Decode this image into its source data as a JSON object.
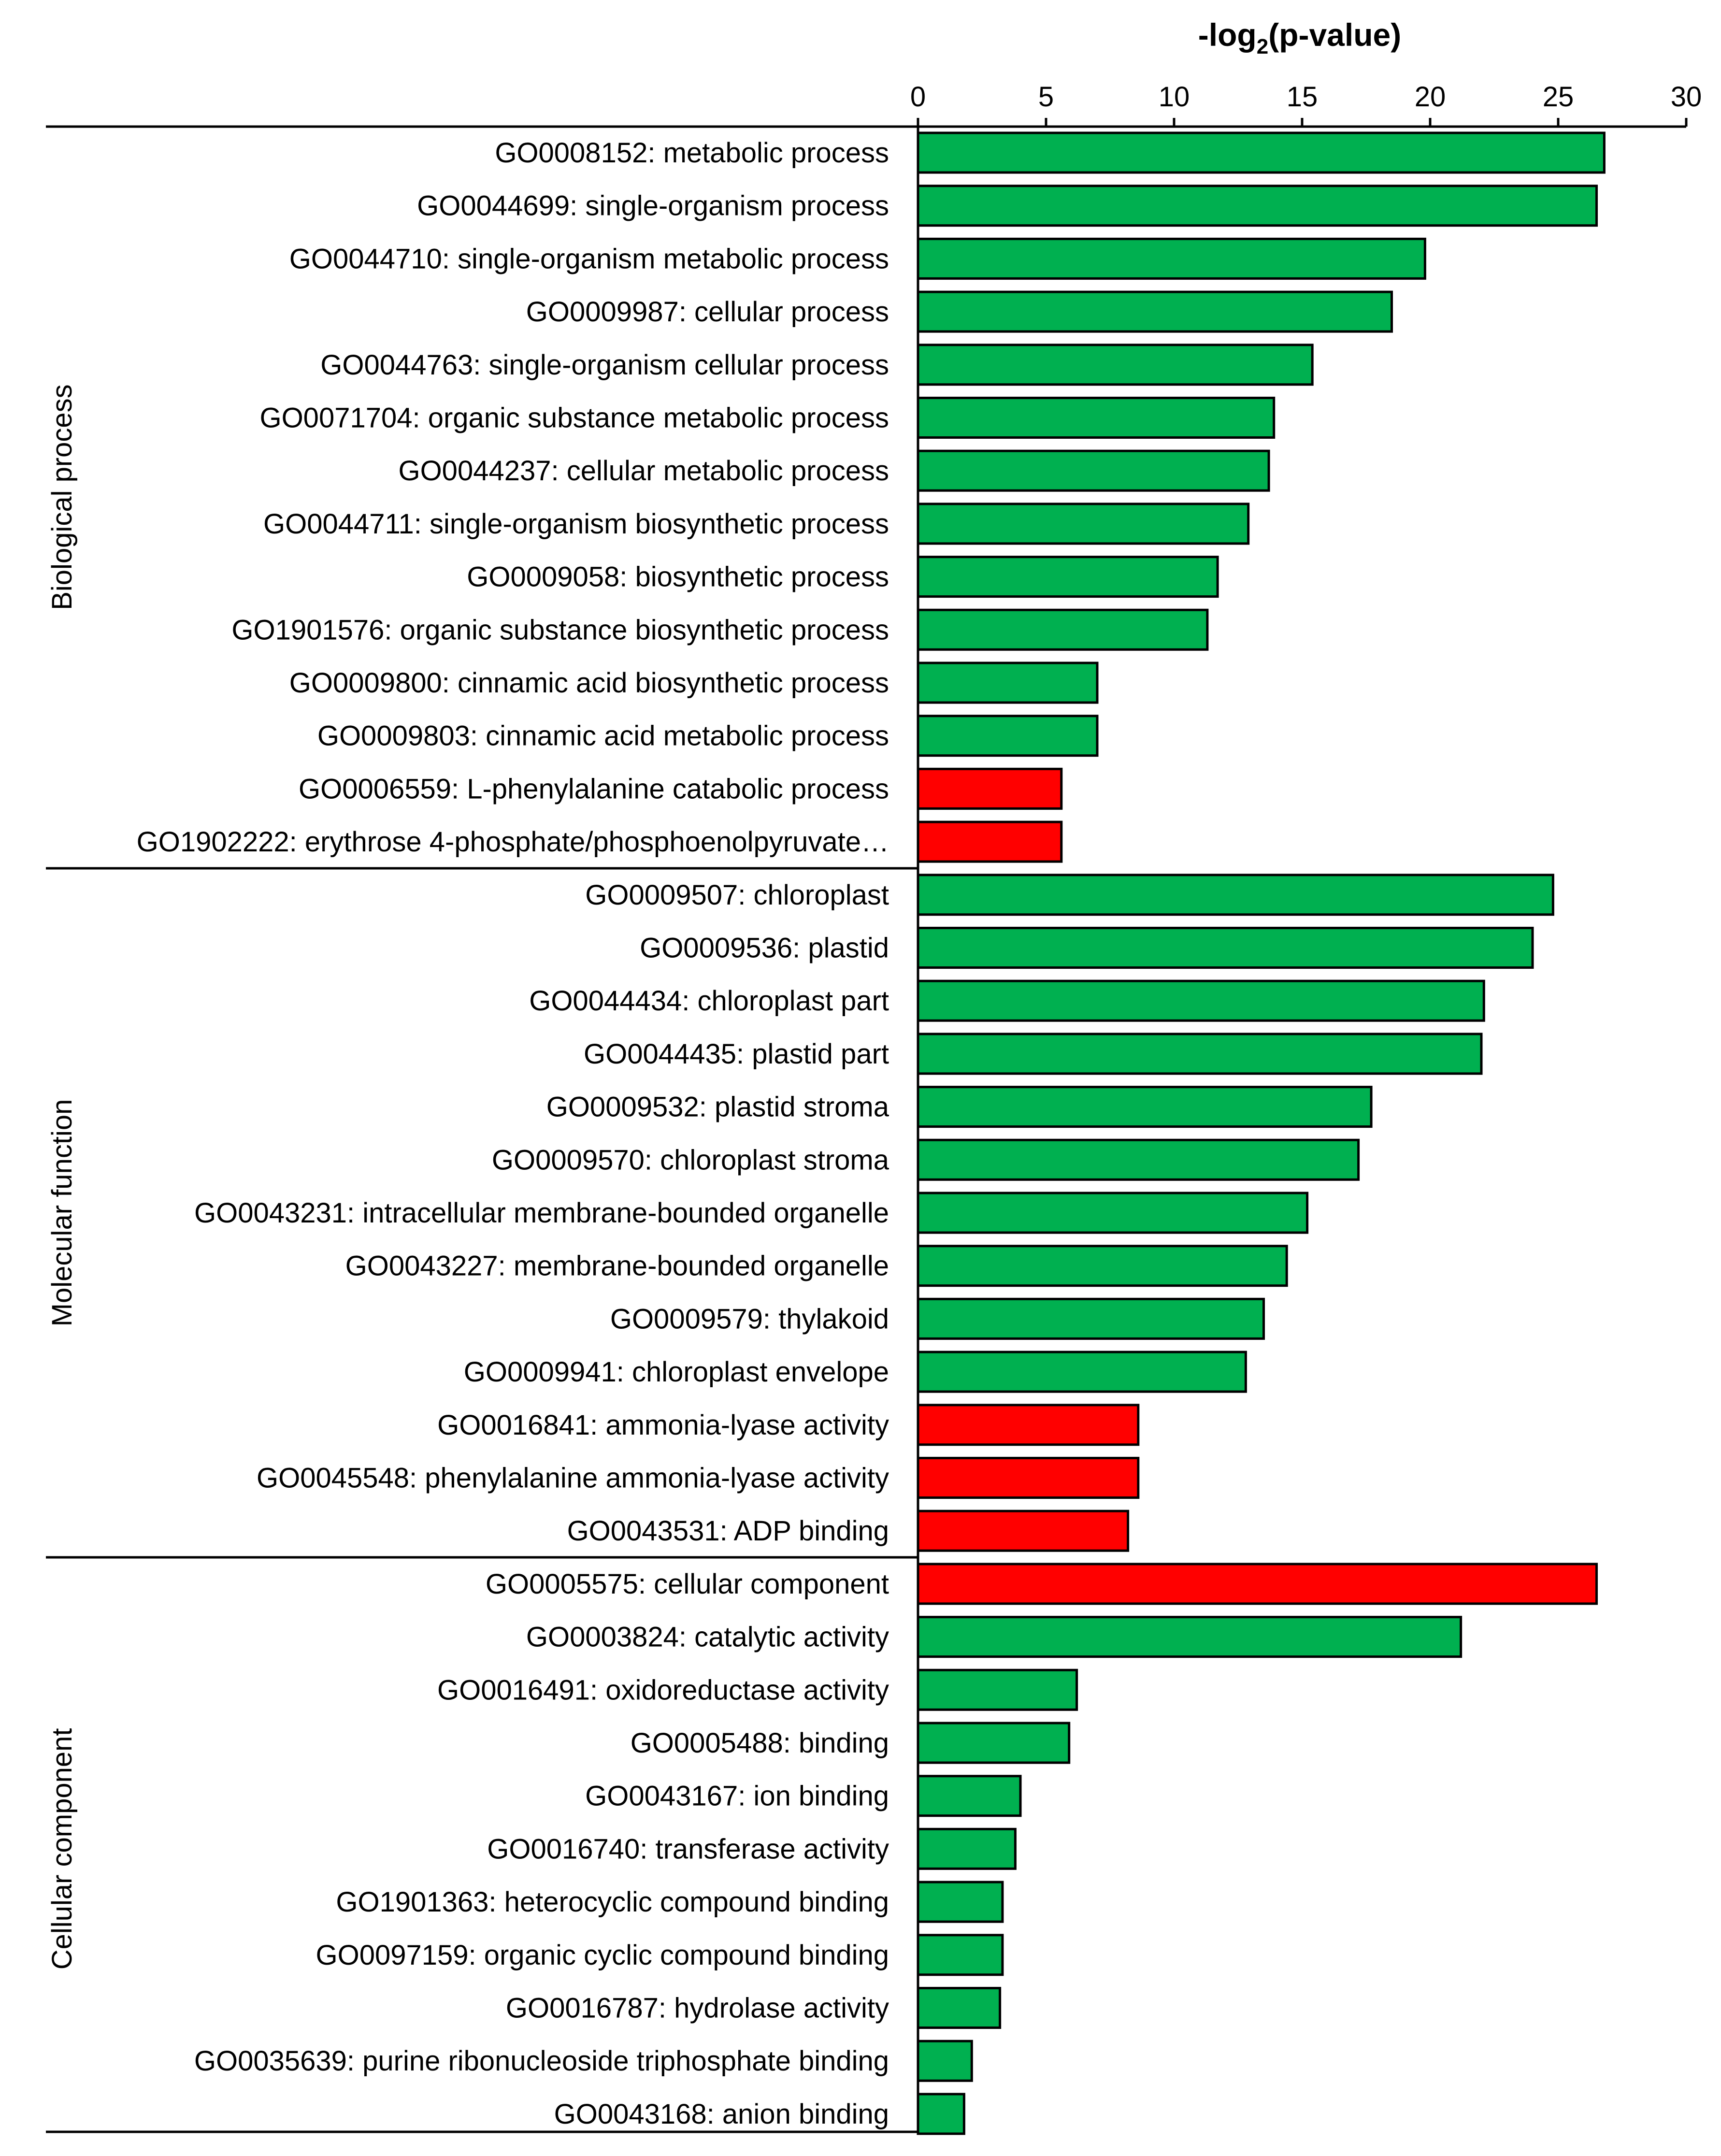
{
  "chart_data": {
    "type": "bar",
    "orientation": "horizontal",
    "title": "",
    "xlabel": "-log2(p-value)",
    "xlabel_parts": {
      "prefix": "-log",
      "subscript": "2",
      "suffix": "(p-value)"
    },
    "xlim": [
      0,
      30
    ],
    "xticks": [
      0,
      5,
      10,
      15,
      20,
      25,
      30
    ],
    "axis_position": "top",
    "grid": false,
    "legend": null,
    "colors": {
      "green": "#00b050",
      "red": "#ff0000",
      "edge": "#000000"
    },
    "groups": [
      {
        "name": "Biological process",
        "bars": [
          {
            "label": "GO0008152: metabolic process",
            "value": 26.8,
            "color": "green"
          },
          {
            "label": "GO0044699: single-organism process",
            "value": 26.5,
            "color": "green"
          },
          {
            "label": "GO0044710: single-organism metabolic process",
            "value": 19.8,
            "color": "green"
          },
          {
            "label": "GO0009987: cellular process",
            "value": 18.5,
            "color": "green"
          },
          {
            "label": "GO0044763: single-organism cellular process",
            "value": 15.4,
            "color": "green"
          },
          {
            "label": "GO0071704: organic substance metabolic process",
            "value": 13.9,
            "color": "green"
          },
          {
            "label": "GO0044237: cellular metabolic process",
            "value": 13.7,
            "color": "green"
          },
          {
            "label": "GO0044711: single-organism biosynthetic process",
            "value": 12.9,
            "color": "green"
          },
          {
            "label": "GO0009058: biosynthetic process",
            "value": 11.7,
            "color": "green"
          },
          {
            "label": "GO1901576: organic substance biosynthetic process",
            "value": 11.3,
            "color": "green"
          },
          {
            "label": "GO0009800: cinnamic acid biosynthetic process",
            "value": 7.0,
            "color": "green"
          },
          {
            "label": "GO0009803: cinnamic acid metabolic process",
            "value": 7.0,
            "color": "green"
          },
          {
            "label": "GO0006559: L-phenylalanine catabolic process",
            "value": 5.6,
            "color": "red"
          },
          {
            "label": "GO1902222: erythrose 4-phosphate/phosphoenolpyruvate…",
            "value": 5.6,
            "color": "red"
          }
        ]
      },
      {
        "name": "Molecular function",
        "bars": [
          {
            "label": "GO0009507: chloroplast",
            "value": 24.8,
            "color": "green"
          },
          {
            "label": "GO0009536: plastid",
            "value": 24.0,
            "color": "green"
          },
          {
            "label": "GO0044434: chloroplast part",
            "value": 22.1,
            "color": "green"
          },
          {
            "label": "GO0044435: plastid part",
            "value": 22.0,
            "color": "green"
          },
          {
            "label": "GO0009532: plastid stroma",
            "value": 17.7,
            "color": "green"
          },
          {
            "label": "GO0009570: chloroplast stroma",
            "value": 17.2,
            "color": "green"
          },
          {
            "label": "GO0043231: intracellular membrane-bounded organelle",
            "value": 15.2,
            "color": "green"
          },
          {
            "label": "GO0043227: membrane-bounded organelle",
            "value": 14.4,
            "color": "green"
          },
          {
            "label": "GO0009579: thylakoid",
            "value": 13.5,
            "color": "green"
          },
          {
            "label": "GO0009941: chloroplast envelope",
            "value": 12.8,
            "color": "green"
          },
          {
            "label": "GO0016841: ammonia-lyase activity",
            "value": 8.6,
            "color": "red"
          },
          {
            "label": "GO0045548: phenylalanine ammonia-lyase activity",
            "value": 8.6,
            "color": "red"
          },
          {
            "label": "GO0043531: ADP binding",
            "value": 8.2,
            "color": "red"
          }
        ]
      },
      {
        "name": "Cellular component",
        "bars": [
          {
            "label": "GO0005575: cellular component",
            "value": 26.5,
            "color": "red"
          },
          {
            "label": "GO0003824: catalytic activity",
            "value": 21.2,
            "color": "green"
          },
          {
            "label": "GO0016491: oxidoreductase activity",
            "value": 6.2,
            "color": "green"
          },
          {
            "label": "GO0005488: binding",
            "value": 5.9,
            "color": "green"
          },
          {
            "label": "GO0043167: ion binding",
            "value": 4.0,
            "color": "green"
          },
          {
            "label": "GO0016740: transferase activity",
            "value": 3.8,
            "color": "green"
          },
          {
            "label": "GO1901363: heterocyclic compound binding",
            "value": 3.3,
            "color": "green"
          },
          {
            "label": "GO0097159: organic cyclic compound binding",
            "value": 3.3,
            "color": "green"
          },
          {
            "label": "GO0016787: hydrolase activity",
            "value": 3.2,
            "color": "green"
          },
          {
            "label": "GO0035639: purine ribonucleoside triphosphate binding",
            "value": 2.1,
            "color": "green"
          },
          {
            "label": "GO0043168: anion binding",
            "value": 1.8,
            "color": "green"
          }
        ]
      }
    ]
  }
}
